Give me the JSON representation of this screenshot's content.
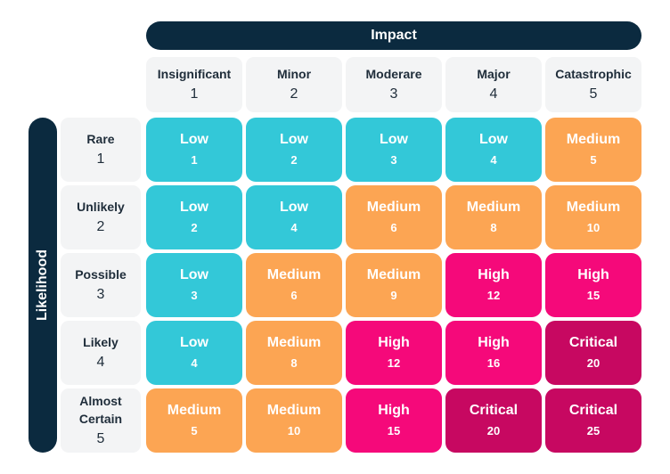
{
  "axes": {
    "impact_title": "Impact",
    "likelihood_title": "Likelihood"
  },
  "impact": [
    {
      "label": "Insignificant",
      "value": "1"
    },
    {
      "label": "Minor",
      "value": "2"
    },
    {
      "label": "Moderare",
      "value": "3"
    },
    {
      "label": "Major",
      "value": "4"
    },
    {
      "label": "Catastrophic",
      "value": "5"
    }
  ],
  "likelihood": [
    {
      "label": "Rare",
      "value": "1"
    },
    {
      "label": "Unlikely",
      "value": "2"
    },
    {
      "label": "Possible",
      "value": "3"
    },
    {
      "label": "Likely",
      "value": "4"
    },
    {
      "label": "Almost Certain",
      "value": "5"
    }
  ],
  "levels": {
    "Low": "#33c8d8",
    "Medium": "#fca553",
    "High": "#f5097a",
    "Critical": "#c70861"
  },
  "matrix": [
    [
      {
        "level": "Low",
        "score": "1"
      },
      {
        "level": "Low",
        "score": "2"
      },
      {
        "level": "Low",
        "score": "3"
      },
      {
        "level": "Low",
        "score": "4"
      },
      {
        "level": "Medium",
        "score": "5"
      }
    ],
    [
      {
        "level": "Low",
        "score": "2"
      },
      {
        "level": "Low",
        "score": "4"
      },
      {
        "level": "Medium",
        "score": "6"
      },
      {
        "level": "Medium",
        "score": "8"
      },
      {
        "level": "Medium",
        "score": "10"
      }
    ],
    [
      {
        "level": "Low",
        "score": "3"
      },
      {
        "level": "Medium",
        "score": "6"
      },
      {
        "level": "Medium",
        "score": "9"
      },
      {
        "level": "High",
        "score": "12"
      },
      {
        "level": "High",
        "score": "15"
      }
    ],
    [
      {
        "level": "Low",
        "score": "4"
      },
      {
        "level": "Medium",
        "score": "8"
      },
      {
        "level": "High",
        "score": "12"
      },
      {
        "level": "High",
        "score": "16"
      },
      {
        "level": "Critical",
        "score": "20"
      }
    ],
    [
      {
        "level": "Medium",
        "score": "5"
      },
      {
        "level": "Medium",
        "score": "10"
      },
      {
        "level": "High",
        "score": "15"
      },
      {
        "level": "Critical",
        "score": "20"
      },
      {
        "level": "Critical",
        "score": "25"
      }
    ]
  ]
}
